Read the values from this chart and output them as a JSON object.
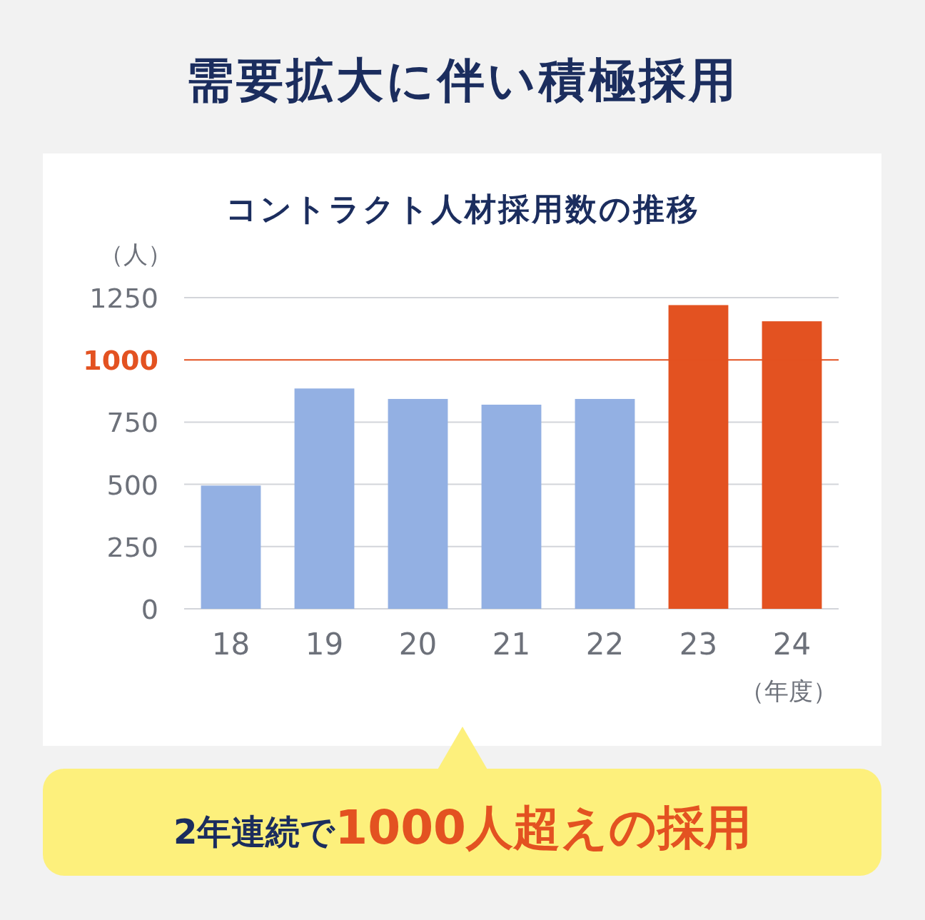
{
  "chart_data": {
    "type": "bar",
    "title": "需要拡大に伴い積極採用",
    "subtitle": "コントラクト人材採用数の推移",
    "ylabel": "（人）",
    "xlabel": "（年度）",
    "categories": [
      "18",
      "19",
      "20",
      "21",
      "22",
      "23",
      "24"
    ],
    "values": [
      495,
      885,
      843,
      820,
      843,
      1220,
      1155
    ],
    "colors": [
      "#93b0e3",
      "#93b0e3",
      "#93b0e3",
      "#93b0e3",
      "#93b0e3",
      "#e35221",
      "#e35221"
    ],
    "ylim": [
      0,
      1250
    ],
    "yticks": [
      0,
      250,
      500,
      750,
      1000,
      1250
    ],
    "grid": "y",
    "ref_lines": [
      {
        "axis": "y",
        "value": 1000,
        "color": "#e35221"
      }
    ],
    "annotations": [
      "2年連続で",
      "1000人超えの採用"
    ]
  }
}
